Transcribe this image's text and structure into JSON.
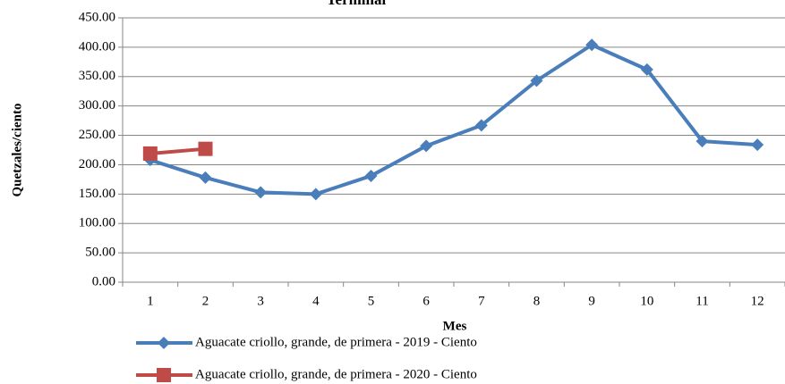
{
  "chart_data": {
    "type": "line",
    "title": "Terminal",
    "x_label": "Mes",
    "y_label": "Quetzales/ciento",
    "categories": [
      "1",
      "2",
      "3",
      "4",
      "5",
      "6",
      "7",
      "8",
      "9",
      "10",
      "11",
      "12"
    ],
    "series": [
      {
        "name": "Aguacate criollo, grande, de primera - 2019 - Ciento",
        "color": "#4a7ebb",
        "marker": "diamond",
        "values": [
          208,
          178,
          153,
          150,
          181,
          232,
          267,
          343,
          404,
          362,
          240,
          234
        ]
      },
      {
        "name": "Aguacate criollo, grande, de primera - 2020 - Ciento",
        "color": "#be4b48",
        "marker": "square",
        "values": [
          219,
          227,
          null,
          null,
          null,
          null,
          null,
          null,
          null,
          null,
          null,
          null
        ]
      }
    ],
    "ylim": [
      0,
      450
    ],
    "yticks": [
      {
        "value": 0,
        "label": "0.00"
      },
      {
        "value": 50,
        "label": "50.00"
      },
      {
        "value": 100,
        "label": "100.00"
      },
      {
        "value": 150,
        "label": "150.00"
      },
      {
        "value": 200,
        "label": "200.00"
      },
      {
        "value": 250,
        "label": "250.00"
      },
      {
        "value": 300,
        "label": "300.00"
      },
      {
        "value": 350,
        "label": "350.00"
      },
      {
        "value": 400,
        "label": "400.00"
      },
      {
        "value": 450,
        "label": "450.00"
      }
    ],
    "grid": true,
    "legend": "bottom"
  }
}
